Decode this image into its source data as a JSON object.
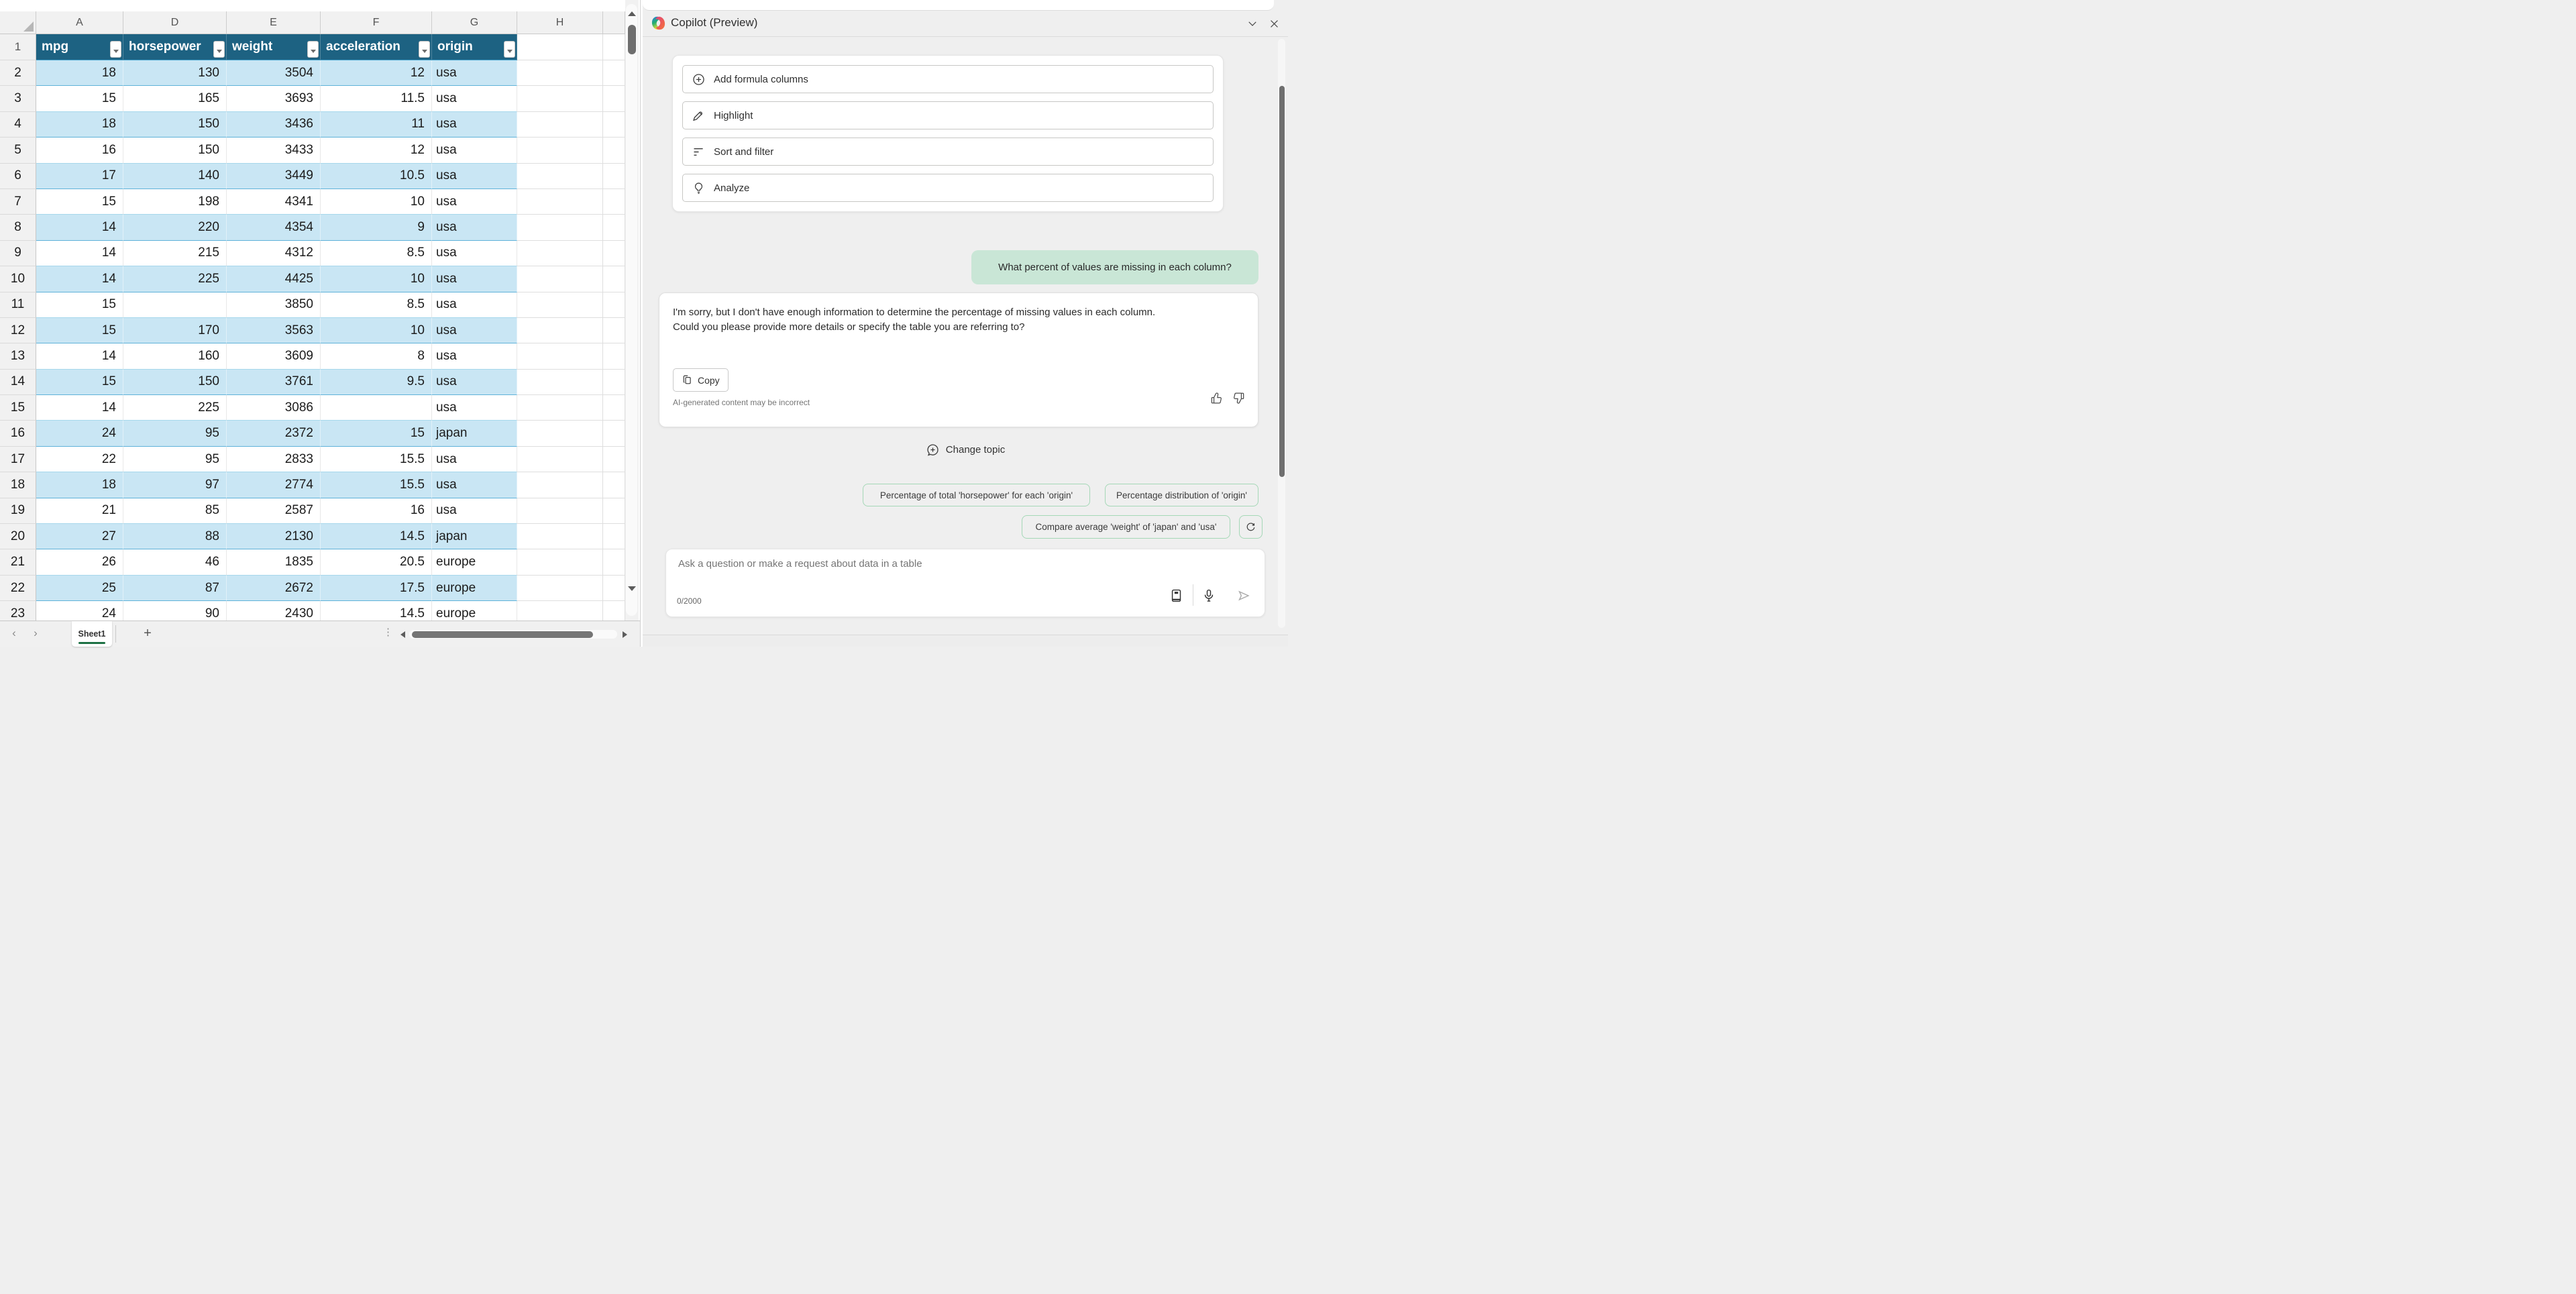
{
  "spreadsheet": {
    "column_letters": [
      "A",
      "D",
      "E",
      "F",
      "G",
      "H"
    ],
    "header_row_number": "1",
    "table_headers": [
      "mpg",
      "horsepower",
      "weight",
      "acceleration",
      "origin"
    ],
    "data_rows": [
      [
        "18",
        "130",
        "3504",
        "12",
        "usa"
      ],
      [
        "15",
        "165",
        "3693",
        "11.5",
        "usa"
      ],
      [
        "18",
        "150",
        "3436",
        "11",
        "usa"
      ],
      [
        "16",
        "150",
        "3433",
        "12",
        "usa"
      ],
      [
        "17",
        "140",
        "3449",
        "10.5",
        "usa"
      ],
      [
        "15",
        "198",
        "4341",
        "10",
        "usa"
      ],
      [
        "14",
        "220",
        "4354",
        "9",
        "usa"
      ],
      [
        "14",
        "215",
        "4312",
        "8.5",
        "usa"
      ],
      [
        "14",
        "225",
        "4425",
        "10",
        "usa"
      ],
      [
        "15",
        "",
        "3850",
        "8.5",
        "usa"
      ],
      [
        "15",
        "170",
        "3563",
        "10",
        "usa"
      ],
      [
        "14",
        "160",
        "3609",
        "8",
        "usa"
      ],
      [
        "15",
        "150",
        "3761",
        "9.5",
        "usa"
      ],
      [
        "14",
        "225",
        "3086",
        "",
        "usa"
      ],
      [
        "24",
        "95",
        "2372",
        "15",
        "japan"
      ],
      [
        "22",
        "95",
        "2833",
        "15.5",
        "usa"
      ],
      [
        "18",
        "97",
        "2774",
        "15.5",
        "usa"
      ],
      [
        "21",
        "85",
        "2587",
        "16",
        "usa"
      ],
      [
        "27",
        "88",
        "2130",
        "14.5",
        "japan"
      ],
      [
        "26",
        "46",
        "1835",
        "20.5",
        "europe"
      ],
      [
        "25",
        "87",
        "2672",
        "17.5",
        "europe"
      ],
      [
        "24",
        "90",
        "2430",
        "14.5",
        "europe"
      ]
    ],
    "first_data_row_number": 2,
    "sheet_tab": "Sheet1"
  },
  "copilot": {
    "title": "Copilot (Preview)",
    "actions": [
      "Add formula columns",
      "Highlight",
      "Sort and filter",
      "Analyze"
    ],
    "user_message": "What percent of values are missing in each column?",
    "assistant_message_lines": [
      "I'm sorry, but I don't have enough information to determine the percentage of missing values in each column.",
      "Could you please provide more details or specify the table you are referring to?"
    ],
    "copy_label": "Copy",
    "disclaimer": "AI-generated content may be incorrect",
    "change_topic_label": "Change topic",
    "suggestions": [
      "Percentage of total 'horsepower' for each 'origin'",
      "Percentage distribution of 'origin'",
      "Compare average 'weight' of 'japan' and 'usa'"
    ],
    "input_placeholder": "Ask a question or make a request about data in a table",
    "char_counter": "0/2000"
  },
  "colors": {
    "table_header_bg": "#1d6282",
    "band_blue": "#c9e6f4",
    "sheet_accent_green": "#1e7145",
    "bubble_green": "#c9e6d6",
    "pill_border": "#a5d8b7"
  }
}
